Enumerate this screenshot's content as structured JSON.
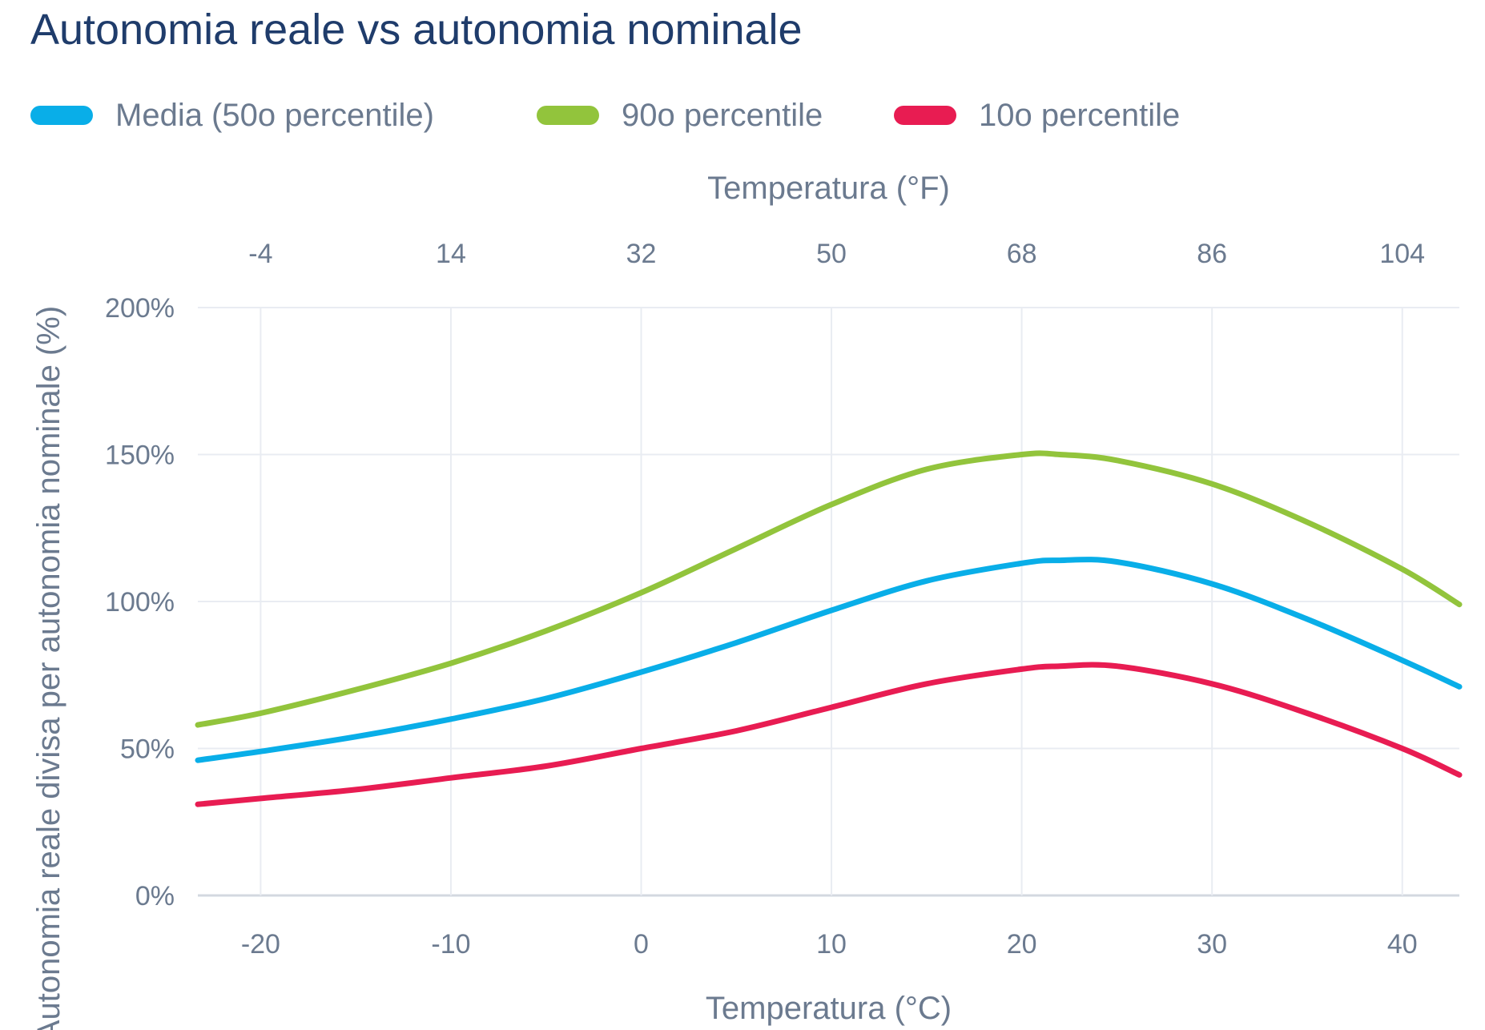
{
  "title": "Autonomia reale vs autonomia nominale",
  "colors": {
    "median": "#09aee8",
    "p90": "#92c43c",
    "p10": "#e81c52",
    "grid": "#e9ecf2",
    "text": "#6b7a8f",
    "title": "#1f3c6b"
  },
  "legend": [
    {
      "label": "Media (50o percentile)",
      "color": "#09aee8"
    },
    {
      "label": "90o percentile",
      "color": "#92c43c"
    },
    {
      "label": "10o percentile",
      "color": "#e81c52"
    }
  ],
  "chart_data": {
    "type": "line",
    "title": "Autonomia reale vs autonomia nominale",
    "xlabel": "Temperatura (°C)",
    "x2label": "Temperatura (°F)",
    "ylabel": "Autonomia reale divisa per autonomia nominale (%)",
    "xlim": [
      -23.3,
      43
    ],
    "ylim": [
      0,
      200
    ],
    "x_ticks": [
      -20,
      -10,
      0,
      10,
      20,
      30,
      40
    ],
    "x_tick_labels": [
      "-20",
      "-10",
      "0",
      "10",
      "20",
      "30",
      "40"
    ],
    "x2_tick_labels": [
      "-4",
      "14",
      "32",
      "50",
      "68",
      "86",
      "104"
    ],
    "y_ticks": [
      0,
      50,
      100,
      150,
      200
    ],
    "y_tick_labels": [
      "0%",
      "50%",
      "100%",
      "150%",
      "200%"
    ],
    "grid": true,
    "legend_position": "top-left",
    "x": [
      -23.3,
      -20,
      -15,
      -10,
      -5,
      0,
      5,
      10,
      15,
      20,
      22,
      25,
      30,
      35,
      40,
      43
    ],
    "series": [
      {
        "name": "Media (50o percentile)",
        "color": "#09aee8",
        "values": [
          46,
          49,
          54,
          60,
          67,
          76,
          86,
          97,
          107,
          113,
          114,
          113.5,
          106,
          94,
          80,
          71
        ]
      },
      {
        "name": "90o percentile",
        "color": "#92c43c",
        "values": [
          58,
          62,
          70,
          79,
          90,
          103,
          118,
          133,
          145,
          150,
          150,
          148,
          140,
          127,
          111,
          99
        ]
      },
      {
        "name": "10o percentile",
        "color": "#e81c52",
        "values": [
          31,
          33,
          36,
          40,
          44,
          50,
          56,
          64,
          72,
          77,
          78,
          78,
          72,
          62,
          50,
          41
        ]
      }
    ]
  }
}
